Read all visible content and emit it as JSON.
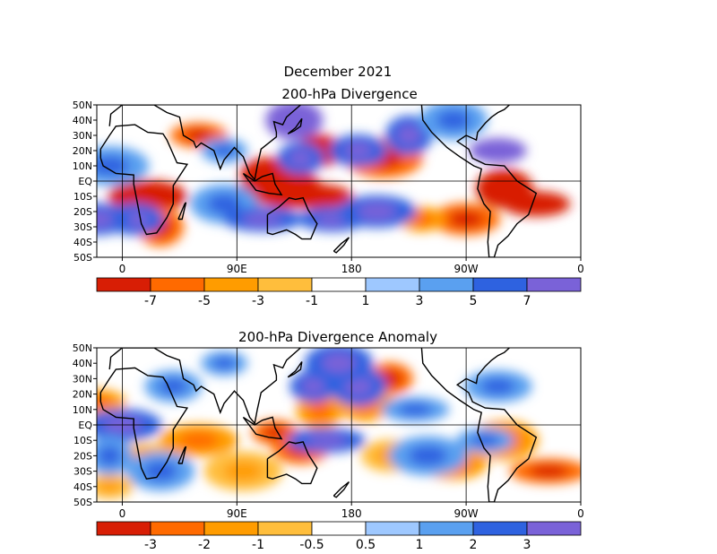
{
  "chart_data": [
    {
      "type": "heatmap",
      "title": "December 2021",
      "subtitle": "200-hPa Divergence",
      "lat_ticks": [
        "50N",
        "40N",
        "30N",
        "20N",
        "10N",
        "EQ",
        "10S",
        "20S",
        "30S",
        "40S",
        "50S"
      ],
      "lon_ticks": [
        "0",
        "90E",
        "180",
        "90W",
        "0"
      ],
      "ylim": [
        -50,
        50
      ],
      "xlim": [
        -20,
        360
      ],
      "colorbar": {
        "colors": [
          "#d81e05",
          "#ff6a00",
          "#ff9c00",
          "#ffbe3c",
          "#ffffff",
          "#9ec8ff",
          "#5aa0f0",
          "#2e62e0",
          "#7a62d8"
        ],
        "labels": [
          "-7",
          "-5",
          "-3",
          "-1",
          "1",
          "3",
          "5",
          "7"
        ]
      },
      "fields": [
        {
          "lon": 95,
          "lat": -10,
          "v": -5
        },
        {
          "lon": 115,
          "lat": 5,
          "v": -6
        },
        {
          "lon": 130,
          "lat": -5,
          "v": -7
        },
        {
          "lon": 150,
          "lat": -10,
          "v": -5
        },
        {
          "lon": 155,
          "lat": 20,
          "v": -4
        },
        {
          "lon": -60,
          "lat": -5,
          "v": -6
        },
        {
          "lon": -35,
          "lat": -15,
          "v": -5
        },
        {
          "lon": 20,
          "lat": -10,
          "v": -5
        },
        {
          "lon": 30,
          "lat": -30,
          "v": -3
        },
        {
          "lon": 60,
          "lat": 30,
          "v": -3
        },
        {
          "lon": -90,
          "lat": -25,
          "v": -3
        },
        {
          "lon": -155,
          "lat": 15,
          "v": -3
        },
        {
          "lon": -125,
          "lat": -25,
          "v": -2
        },
        {
          "lon": 10,
          "lat": -25,
          "v": 3
        },
        {
          "lon": 80,
          "lat": -15,
          "v": 2
        },
        {
          "lon": 110,
          "lat": -25,
          "v": 3
        },
        {
          "lon": 140,
          "lat": 15,
          "v": 3
        },
        {
          "lon": 135,
          "lat": 40,
          "v": 5
        },
        {
          "lon": 165,
          "lat": -25,
          "v": 3
        },
        {
          "lon": -160,
          "lat": -20,
          "v": 3
        },
        {
          "lon": -135,
          "lat": 30,
          "v": 3
        },
        {
          "lon": -65,
          "lat": 20,
          "v": 4
        },
        {
          "lon": -20,
          "lat": -25,
          "v": 3
        },
        {
          "lon": -10,
          "lat": 10,
          "v": 2
        },
        {
          "lon": 80,
          "lat": 20,
          "v": 2
        },
        {
          "lon": -175,
          "lat": 20,
          "v": 3
        },
        {
          "lon": -100,
          "lat": 40,
          "v": 2
        }
      ]
    },
    {
      "type": "heatmap",
      "title": "200-hPa Divergence Anomaly",
      "lat_ticks": [
        "50N",
        "40N",
        "30N",
        "20N",
        "10N",
        "EQ",
        "10S",
        "20S",
        "30S",
        "40S",
        "50S"
      ],
      "lon_ticks": [
        "0",
        "90E",
        "180",
        "90W",
        "0"
      ],
      "ylim": [
        -50,
        50
      ],
      "xlim": [
        -20,
        360
      ],
      "colorbar": {
        "colors": [
          "#d81e05",
          "#ff6a00",
          "#ff9c00",
          "#ffbe3c",
          "#ffffff",
          "#9ec8ff",
          "#5aa0f0",
          "#2e62e0",
          "#7a62d8"
        ],
        "labels": [
          "-3",
          "-2",
          "-1",
          "-0.5",
          "0.5",
          "1",
          "2",
          "3"
        ]
      },
      "fields": [
        {
          "lon": 120,
          "lat": -5,
          "v": -3
        },
        {
          "lon": 140,
          "lat": -15,
          "v": -3
        },
        {
          "lon": -60,
          "lat": -10,
          "v": -2
        },
        {
          "lon": -25,
          "lat": -30,
          "v": -3
        },
        {
          "lon": -150,
          "lat": 30,
          "v": -3
        },
        {
          "lon": -170,
          "lat": 15,
          "v": -2
        },
        {
          "lon": 20,
          "lat": -20,
          "v": -1
        },
        {
          "lon": 60,
          "lat": -10,
          "v": -2
        },
        {
          "lon": 155,
          "lat": 10,
          "v": -2
        },
        {
          "lon": -20,
          "lat": 15,
          "v": -2
        },
        {
          "lon": -100,
          "lat": -25,
          "v": -2
        },
        {
          "lon": 95,
          "lat": -30,
          "v": -1
        },
        {
          "lon": -10,
          "lat": -40,
          "v": -1
        },
        {
          "lon": -150,
          "lat": -20,
          "v": -1
        },
        {
          "lon": 30,
          "lat": -30,
          "v": 2
        },
        {
          "lon": 160,
          "lat": -10,
          "v": 3
        },
        {
          "lon": 150,
          "lat": 25,
          "v": 3
        },
        {
          "lon": -175,
          "lat": 25,
          "v": 3
        },
        {
          "lon": -130,
          "lat": 10,
          "v": 2
        },
        {
          "lon": 0,
          "lat": 0,
          "v": 3
        },
        {
          "lon": -10,
          "lat": -20,
          "v": 2
        },
        {
          "lon": -75,
          "lat": -10,
          "v": 2
        },
        {
          "lon": -65,
          "lat": 25,
          "v": 2
        },
        {
          "lon": -120,
          "lat": -20,
          "v": 2
        },
        {
          "lon": 80,
          "lat": 40,
          "v": 2
        },
        {
          "lon": 40,
          "lat": 25,
          "v": 2
        },
        {
          "lon": 170,
          "lat": 40,
          "v": 3
        }
      ]
    }
  ]
}
